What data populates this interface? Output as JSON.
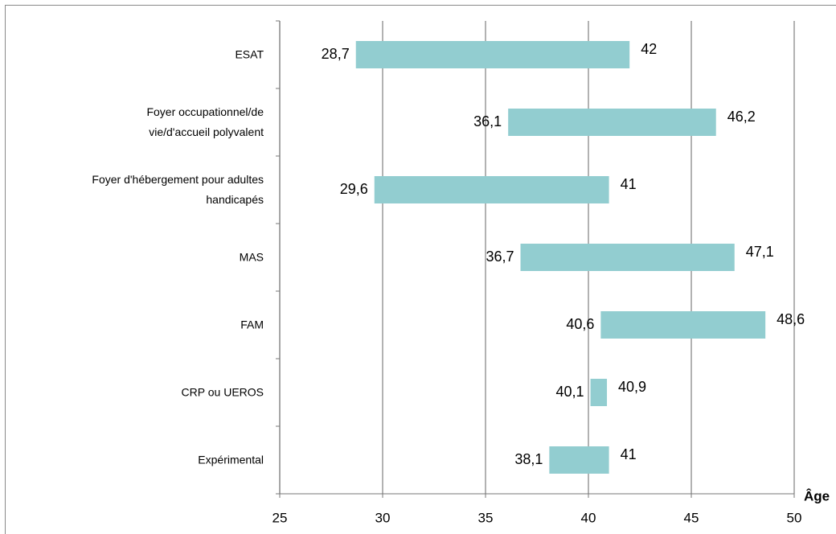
{
  "chart_data": {
    "type": "range_bar",
    "categories": [
      "ESAT",
      "Foyer occupationnel/de\nvie/d'accueil polyvalent",
      "Foyer d'hébergement pour adultes\nhandicapés",
      "MAS",
      "FAM",
      "CRP ou UEROS",
      "Expérimental"
    ],
    "series": [
      {
        "values": [
          28.7,
          36.1,
          29.6,
          36.7,
          40.6,
          40.1,
          38.1
        ],
        "value_labels": [
          "28,7",
          "36,1",
          "29,6",
          "36,7",
          "40,6",
          "40,1",
          "38,1"
        ]
      },
      {
        "values": [
          42,
          46.2,
          41,
          47.1,
          48.6,
          40.9,
          41
        ],
        "value_labels": [
          "42",
          "46,2",
          "41",
          "47,1",
          "48,6",
          "40,9",
          "41"
        ]
      }
    ],
    "color": "#92cdd0",
    "xlabel": "Âge",
    "xlim": [
      25,
      50
    ],
    "xticks": [
      25,
      30,
      35,
      40,
      45,
      50
    ],
    "grid": true
  }
}
